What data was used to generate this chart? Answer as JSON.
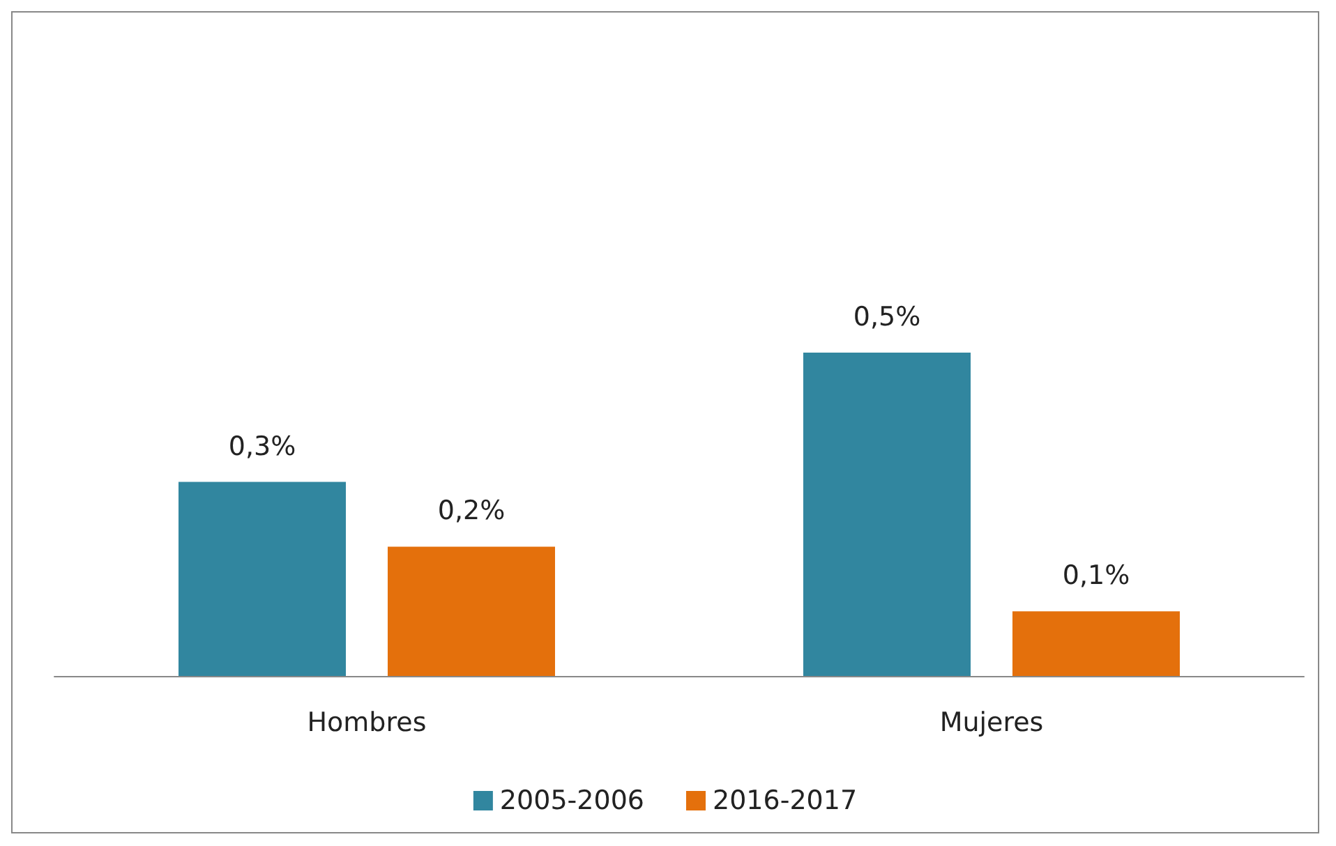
{
  "chart_data": {
    "type": "bar",
    "categories": [
      "Hombres",
      "Mujeres"
    ],
    "series": [
      {
        "name": "2005-2006",
        "color": "#31869f",
        "values": [
          0.3,
          0.5
        ],
        "value_labels": [
          "0,3%",
          "0,5%"
        ]
      },
      {
        "name": "2016-2017",
        "color": "#e4700c",
        "values": [
          0.2,
          0.1
        ],
        "value_labels": [
          "0,2%",
          "0,1%"
        ]
      }
    ],
    "legend": "bottom",
    "grid": false
  }
}
